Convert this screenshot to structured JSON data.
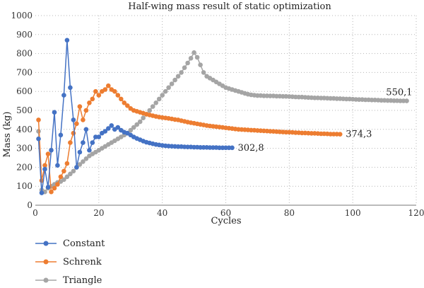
{
  "chart_data": {
    "type": "line",
    "title": "Half-wing mass result of static optimization",
    "xlabel": "Cycles",
    "ylabel": "Mass (kg)",
    "xlim": [
      0,
      120
    ],
    "ylim": [
      0,
      1000
    ],
    "xticks": [
      "0",
      "20",
      "40",
      "60",
      "80",
      "100",
      "120"
    ],
    "yticks": [
      "0",
      "100",
      "200",
      "300",
      "400",
      "500",
      "600",
      "700",
      "800",
      "900",
      "1000"
    ],
    "grid": "dotted",
    "legend_position": "bottom-left",
    "colors": {
      "Constant": "#4472c4",
      "Schrenk": "#ed7d31",
      "Triangle": "#a5a5a5"
    },
    "series": [
      {
        "name": "Constant",
        "color": "#4472c4",
        "end_label": "302,8",
        "x": [
          1,
          2,
          3,
          4,
          5,
          6,
          7,
          8,
          9,
          10,
          11,
          12,
          13,
          14,
          15,
          16,
          17,
          18,
          19,
          20,
          21,
          22,
          23,
          24,
          25,
          26,
          27,
          28,
          29,
          30,
          31,
          32,
          33,
          34,
          35,
          36,
          37,
          38,
          39,
          40,
          41,
          42,
          43,
          44,
          45,
          46,
          47,
          48,
          49,
          50,
          51,
          52,
          53,
          54,
          55,
          56,
          57,
          58,
          59,
          60,
          61,
          62
        ],
        "y": [
          350,
          65,
          190,
          95,
          290,
          490,
          210,
          370,
          580,
          870,
          620,
          450,
          200,
          280,
          330,
          400,
          290,
          330,
          360,
          360,
          380,
          390,
          405,
          420,
          400,
          410,
          395,
          385,
          380,
          370,
          360,
          352,
          345,
          338,
          332,
          328,
          324,
          320,
          318,
          315,
          313,
          312,
          311,
          310,
          309,
          309,
          308,
          307,
          307,
          306,
          306,
          305,
          305,
          305,
          304,
          304,
          304,
          303,
          303,
          303,
          303,
          302.8
        ]
      },
      {
        "name": "Schrenk",
        "color": "#ed7d31",
        "end_label": "374,3",
        "x": [
          1,
          2,
          3,
          4,
          5,
          6,
          7,
          8,
          9,
          10,
          11,
          12,
          13,
          14,
          15,
          16,
          17,
          18,
          19,
          20,
          21,
          22,
          23,
          24,
          25,
          26,
          27,
          28,
          29,
          30,
          31,
          32,
          33,
          34,
          35,
          36,
          37,
          38,
          39,
          40,
          41,
          42,
          43,
          44,
          45,
          46,
          47,
          48,
          49,
          50,
          51,
          52,
          53,
          54,
          55,
          56,
          57,
          58,
          59,
          60,
          61,
          62,
          63,
          64,
          65,
          66,
          67,
          68,
          69,
          70,
          71,
          72,
          73,
          74,
          75,
          76,
          77,
          78,
          79,
          80,
          81,
          82,
          83,
          84,
          85,
          86,
          87,
          88,
          89,
          90,
          91,
          92,
          93,
          94,
          95,
          96
        ],
        "y": [
          450,
          130,
          210,
          270,
          70,
          90,
          110,
          150,
          180,
          220,
          330,
          380,
          430,
          520,
          450,
          500,
          540,
          560,
          600,
          580,
          600,
          610,
          630,
          610,
          600,
          580,
          560,
          540,
          525,
          510,
          500,
          495,
          490,
          485,
          480,
          476,
          472,
          468,
          465,
          462,
          460,
          458,
          455,
          452,
          450,
          446,
          442,
          438,
          435,
          432,
          429,
          426,
          423,
          420,
          418,
          416,
          414,
          412,
          410,
          408,
          406,
          404,
          402,
          400,
          399,
          398,
          397,
          396,
          395,
          394,
          393,
          392,
          391,
          390,
          389,
          388,
          387,
          386,
          385,
          385,
          384,
          383,
          382,
          381,
          381,
          380,
          379,
          379,
          378,
          377,
          377,
          376,
          375,
          375,
          374.5,
          374.3
        ]
      },
      {
        "name": "Triangle",
        "color": "#a5a5a5",
        "end_label": "550,1",
        "x": [
          1,
          2,
          3,
          4,
          5,
          6,
          7,
          8,
          9,
          10,
          11,
          12,
          13,
          14,
          15,
          16,
          17,
          18,
          19,
          20,
          21,
          22,
          23,
          24,
          25,
          26,
          27,
          28,
          29,
          30,
          31,
          32,
          33,
          34,
          35,
          36,
          37,
          38,
          39,
          40,
          41,
          42,
          43,
          44,
          45,
          46,
          47,
          48,
          49,
          50,
          51,
          52,
          53,
          54,
          55,
          56,
          57,
          58,
          59,
          60,
          61,
          62,
          63,
          64,
          65,
          66,
          67,
          68,
          69,
          70,
          71,
          72,
          73,
          74,
          75,
          76,
          77,
          78,
          79,
          80,
          81,
          82,
          83,
          84,
          85,
          86,
          87,
          88,
          89,
          90,
          91,
          92,
          93,
          94,
          95,
          96,
          97,
          98,
          99,
          100,
          101,
          102,
          103,
          104,
          105,
          106,
          107,
          108,
          109,
          110,
          111,
          112,
          113,
          114,
          115,
          116,
          117
        ],
        "y": [
          390,
          80,
          70,
          90,
          100,
          110,
          120,
          125,
          135,
          150,
          165,
          180,
          200,
          215,
          230,
          245,
          260,
          270,
          280,
          290,
          300,
          310,
          320,
          330,
          340,
          350,
          360,
          370,
          380,
          395,
          410,
          425,
          440,
          460,
          480,
          500,
          520,
          540,
          560,
          580,
          600,
          620,
          640,
          660,
          680,
          700,
          725,
          750,
          775,
          805,
          780,
          740,
          700,
          680,
          670,
          660,
          650,
          640,
          630,
          620,
          615,
          610,
          605,
          600,
          595,
          590,
          585,
          582,
          580,
          578,
          578,
          577,
          577,
          576,
          576,
          575,
          575,
          574,
          574,
          573,
          572,
          571,
          570,
          570,
          569,
          568,
          567,
          566,
          566,
          565,
          565,
          564,
          563,
          563,
          562,
          562,
          561,
          560,
          560,
          559,
          558,
          557,
          557,
          556,
          556,
          555,
          555,
          554,
          553,
          553,
          552,
          552,
          551,
          551,
          550.5,
          550.3,
          550.1
        ]
      }
    ]
  }
}
